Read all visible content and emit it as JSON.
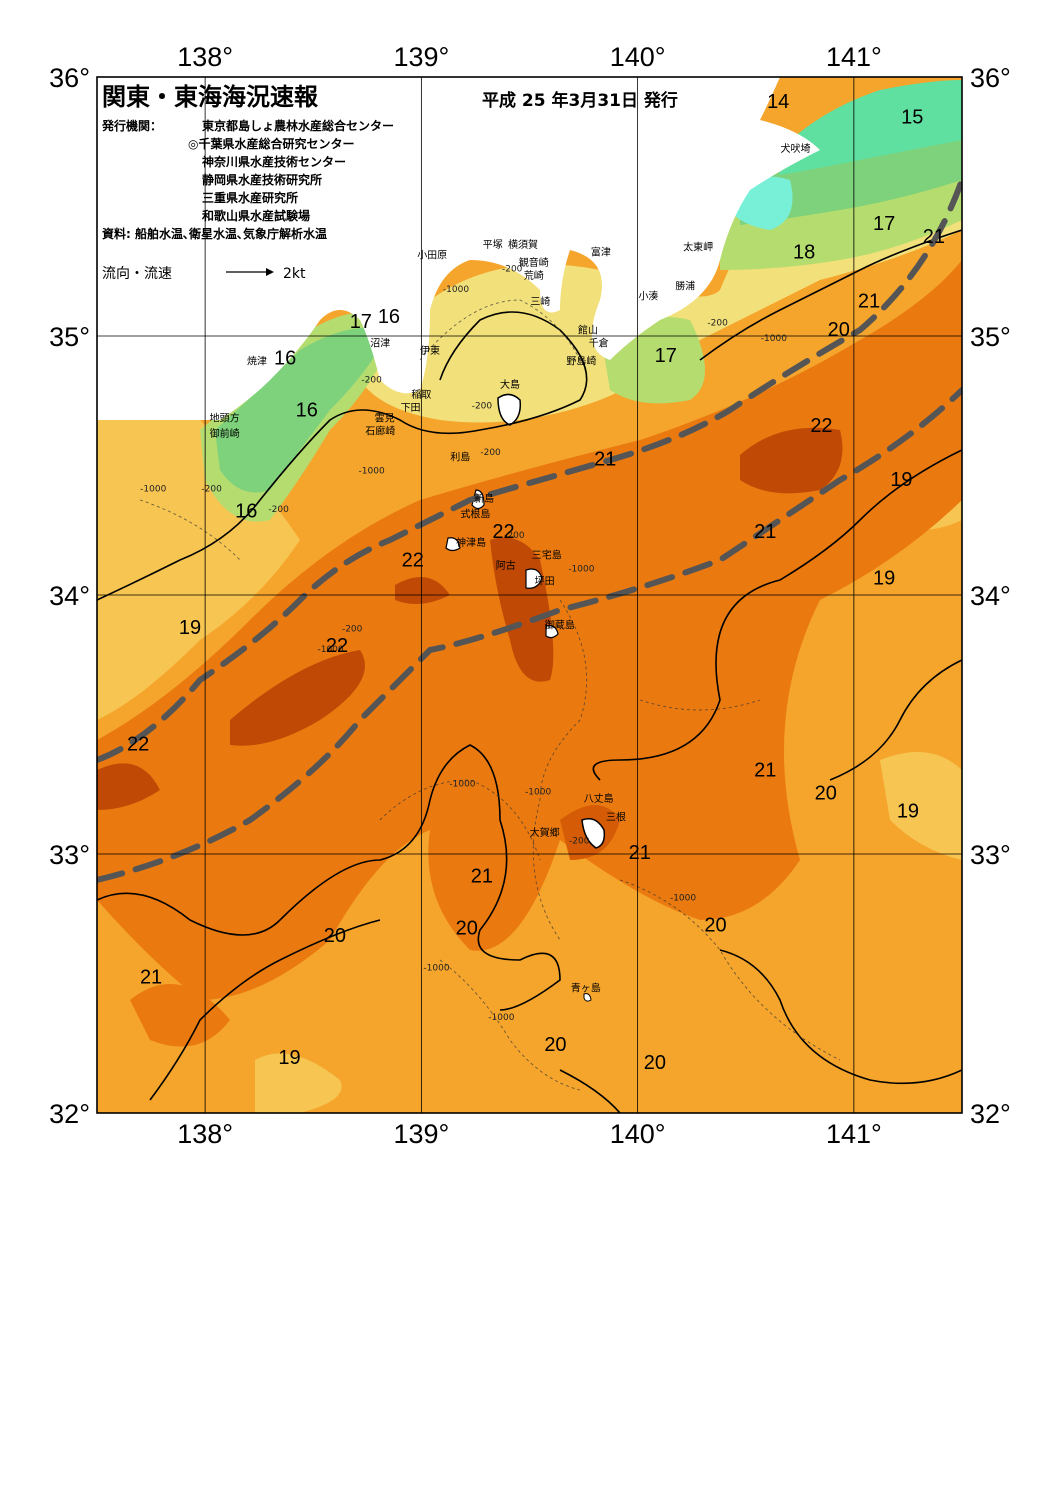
{
  "header": {
    "title": "関東・東海海況速報",
    "issue_date": "平成 25 年3月31日 発行",
    "publisher_label": "発行機関：",
    "publishers": [
      "東京都島しょ農林水産総合センター",
      "◎千葉県水産総合研究センター",
      "神奈川県水産技術センター",
      "静岡県水産技術研究所",
      "三重県水産研究所",
      "和歌山県水産試験場"
    ],
    "sources": "資料: 船舶水温､衛星水温､気象庁解析水温",
    "flow_label": "流向・流速",
    "flow_scale": "2kt"
  },
  "axes": {
    "lon_top": [
      "138°",
      "139°",
      "140°",
      "141°"
    ],
    "lon_bottom": [
      "138°",
      "139°",
      "140°",
      "141°"
    ],
    "lat_left": [
      "36°",
      "35°",
      "34°",
      "33°",
      "32°"
    ],
    "lat_right": [
      "36°",
      "35°",
      "34°",
      "33°",
      "32°"
    ],
    "lon_range": [
      137.5,
      141.5
    ],
    "lat_range": [
      32,
      36
    ]
  },
  "colors": {
    "t15": "#5fe0a0",
    "t16": "#7ed27c",
    "t17": "#b5dc6e",
    "t18": "#f2e07a",
    "t19": "#f7c552",
    "t20": "#f5a52c",
    "t21": "#ea7a10",
    "t22": "#d55b06",
    "t22b": "#c04a05",
    "cold": "#78f0d8",
    "land": "#ffffff",
    "kuroshio": "#555555"
  },
  "isotherm_labels": [
    {
      "t": "15",
      "lon": 141.27,
      "lat": 35.82
    },
    {
      "t": "14",
      "lon": 140.65,
      "lat": 35.88
    },
    {
      "t": "17",
      "lon": 141.14,
      "lat": 35.41
    },
    {
      "t": "18",
      "lon": 140.77,
      "lat": 35.3
    },
    {
      "t": "21",
      "lon": 141.37,
      "lat": 35.36
    },
    {
      "t": "21",
      "lon": 141.07,
      "lat": 35.11
    },
    {
      "t": "20",
      "lon": 140.93,
      "lat": 35.0
    },
    {
      "t": "17",
      "lon": 138.72,
      "lat": 35.03
    },
    {
      "t": "16",
      "lon": 138.85,
      "lat": 35.05
    },
    {
      "t": "16",
      "lon": 138.37,
      "lat": 34.89
    },
    {
      "t": "16",
      "lon": 138.47,
      "lat": 34.69
    },
    {
      "t": "17",
      "lon": 140.13,
      "lat": 34.9
    },
    {
      "t": "22",
      "lon": 140.85,
      "lat": 34.63
    },
    {
      "t": "21",
      "lon": 139.85,
      "lat": 34.5
    },
    {
      "t": "19",
      "lon": 141.22,
      "lat": 34.42
    },
    {
      "t": "21",
      "lon": 140.59,
      "lat": 34.22
    },
    {
      "t": "19",
      "lon": 141.14,
      "lat": 34.04
    },
    {
      "t": "16",
      "lon": 138.19,
      "lat": 34.3
    },
    {
      "t": "22",
      "lon": 139.38,
      "lat": 34.22
    },
    {
      "t": "22",
      "lon": 138.96,
      "lat": 34.11
    },
    {
      "t": "19",
      "lon": 137.93,
      "lat": 33.85
    },
    {
      "t": "22",
      "lon": 138.61,
      "lat": 33.78
    },
    {
      "t": "22",
      "lon": 137.69,
      "lat": 33.4
    },
    {
      "t": "21",
      "lon": 140.59,
      "lat": 33.3
    },
    {
      "t": "20",
      "lon": 140.87,
      "lat": 33.21
    },
    {
      "t": "19",
      "lon": 141.25,
      "lat": 33.14
    },
    {
      "t": "21",
      "lon": 140.01,
      "lat": 32.98
    },
    {
      "t": "21",
      "lon": 139.28,
      "lat": 32.89
    },
    {
      "t": "20",
      "lon": 140.36,
      "lat": 32.7
    },
    {
      "t": "20",
      "lon": 138.6,
      "lat": 32.66
    },
    {
      "t": "20",
      "lon": 139.21,
      "lat": 32.69
    },
    {
      "t": "21",
      "lon": 137.75,
      "lat": 32.5
    },
    {
      "t": "20",
      "lon": 139.62,
      "lat": 32.24
    },
    {
      "t": "19",
      "lon": 138.39,
      "lat": 32.19
    },
    {
      "t": "20",
      "lon": 140.08,
      "lat": 32.17
    }
  ],
  "depth_labels": [
    {
      "t": "-1000",
      "lon": 139.16,
      "lat": 35.17
    },
    {
      "t": "-200",
      "lon": 139.42,
      "lat": 35.25
    },
    {
      "t": "-200",
      "lon": 140.37,
      "lat": 35.04
    },
    {
      "t": "-1000",
      "lon": 140.63,
      "lat": 34.98
    },
    {
      "t": "-200",
      "lon": 138.77,
      "lat": 34.82
    },
    {
      "t": "-200",
      "lon": 139.28,
      "lat": 34.72
    },
    {
      "t": "-1000",
      "lon": 138.77,
      "lat": 34.47
    },
    {
      "t": "-200",
      "lon": 139.32,
      "lat": 34.54
    },
    {
      "t": "-1000",
      "lon": 137.76,
      "lat": 34.4
    },
    {
      "t": "-200",
      "lon": 138.03,
      "lat": 34.4
    },
    {
      "t": "-200",
      "lon": 138.34,
      "lat": 34.32
    },
    {
      "t": "-200",
      "lon": 139.43,
      "lat": 34.22
    },
    {
      "t": "-1000",
      "lon": 139.74,
      "lat": 34.09
    },
    {
      "t": "-200",
      "lon": 138.68,
      "lat": 33.86
    },
    {
      "t": "-1000",
      "lon": 138.58,
      "lat": 33.78
    },
    {
      "t": "-1000",
      "lon": 139.19,
      "lat": 33.26
    },
    {
      "t": "-1000",
      "lon": 139.54,
      "lat": 33.23
    },
    {
      "t": "-200",
      "lon": 139.73,
      "lat": 33.04
    },
    {
      "t": "-1000",
      "lon": 140.21,
      "lat": 32.82
    },
    {
      "t": "-1000",
      "lon": 139.07,
      "lat": 32.55
    },
    {
      "t": "-1000",
      "lon": 139.37,
      "lat": 32.36
    }
  ],
  "place_labels": [
    {
      "t": "犬吠埼",
      "lon": 140.73,
      "lat": 35.71
    },
    {
      "t": "太東岬",
      "lon": 140.28,
      "lat": 35.33
    },
    {
      "t": "勝浦",
      "lon": 140.22,
      "lat": 35.18
    },
    {
      "t": "小湊",
      "lon": 140.05,
      "lat": 35.14
    },
    {
      "t": "平塚",
      "lon": 139.33,
      "lat": 35.34
    },
    {
      "t": "横須賀",
      "lon": 139.47,
      "lat": 35.34
    },
    {
      "t": "観音崎",
      "lon": 139.52,
      "lat": 35.27
    },
    {
      "t": "富津",
      "lon": 139.83,
      "lat": 35.31
    },
    {
      "t": "荒崎",
      "lon": 139.52,
      "lat": 35.22
    },
    {
      "t": "小田原",
      "lon": 139.05,
      "lat": 35.3
    },
    {
      "t": "三崎",
      "lon": 139.55,
      "lat": 35.12
    },
    {
      "t": "館山",
      "lon": 139.77,
      "lat": 35.01
    },
    {
      "t": "千倉",
      "lon": 139.82,
      "lat": 34.96
    },
    {
      "t": "野島崎",
      "lon": 139.74,
      "lat": 34.89
    },
    {
      "t": "沼津",
      "lon": 138.81,
      "lat": 34.96
    },
    {
      "t": "伊東",
      "lon": 139.04,
      "lat": 34.93
    },
    {
      "t": "焼津",
      "lon": 138.24,
      "lat": 34.89
    },
    {
      "t": "大島",
      "lon": 139.41,
      "lat": 34.8
    },
    {
      "t": "稲取",
      "lon": 139.0,
      "lat": 34.76
    },
    {
      "t": "下田",
      "lon": 138.95,
      "lat": 34.71
    },
    {
      "t": "雲見",
      "lon": 138.83,
      "lat": 34.67
    },
    {
      "t": "石廊崎",
      "lon": 138.81,
      "lat": 34.62
    },
    {
      "t": "地頭方",
      "lon": 138.09,
      "lat": 34.67
    },
    {
      "t": "御前崎",
      "lon": 138.09,
      "lat": 34.61
    },
    {
      "t": "利島",
      "lon": 139.18,
      "lat": 34.52
    },
    {
      "t": "新島",
      "lon": 139.29,
      "lat": 34.36
    },
    {
      "t": "式根島",
      "lon": 139.25,
      "lat": 34.3
    },
    {
      "t": "神津島",
      "lon": 139.23,
      "lat": 34.19
    },
    {
      "t": "三宅島",
      "lon": 139.58,
      "lat": 34.14
    },
    {
      "t": "阿古",
      "lon": 139.39,
      "lat": 34.1
    },
    {
      "t": "坪田",
      "lon": 139.57,
      "lat": 34.04
    },
    {
      "t": "御蔵島",
      "lon": 139.64,
      "lat": 33.87
    },
    {
      "t": "八丈島",
      "lon": 139.82,
      "lat": 33.2
    },
    {
      "t": "三根",
      "lon": 139.9,
      "lat": 33.13
    },
    {
      "t": "大賀郷",
      "lon": 139.57,
      "lat": 33.07
    },
    {
      "t": "青ヶ島",
      "lon": 139.76,
      "lat": 32.47
    }
  ]
}
